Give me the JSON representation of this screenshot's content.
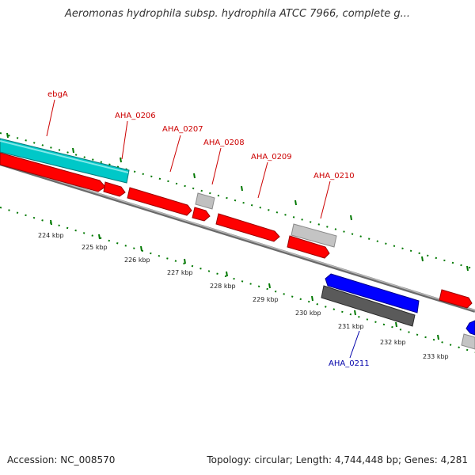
{
  "title": "Aeromonas hydrophila subsp. hydrophila ATCC 7966, complete g...",
  "footer": {
    "accession": "Accession: NC_008570",
    "summary": "Topology: circular; Length: 4,744,448 bp; Genes: 4,281"
  },
  "colors": {
    "cds_forward": "#ff0000",
    "cds_reverse": "#0000ff",
    "rna": "#00c8c8",
    "other": "#bebebe",
    "other_dark": "#505050",
    "backbone": "#808080",
    "tick": "#007800",
    "label_forward": "#cc0000",
    "label_reverse": "#0000aa"
  },
  "ticks": [
    {
      "label": "224 kbp"
    },
    {
      "label": "225 kbp"
    },
    {
      "label": "226 kbp"
    },
    {
      "label": "227 kbp"
    },
    {
      "label": "228 kbp"
    },
    {
      "label": "229 kbp"
    },
    {
      "label": "230 kbp"
    },
    {
      "label": "231 kbp"
    },
    {
      "label": "232 kbp"
    },
    {
      "label": "233 kbp"
    }
  ],
  "gene_labels": [
    {
      "text": "ebgA",
      "strand": "forward"
    },
    {
      "text": "AHA_0206",
      "strand": "forward"
    },
    {
      "text": "AHA_0207",
      "strand": "forward"
    },
    {
      "text": "AHA_0208",
      "strand": "forward"
    },
    {
      "text": "AHA_0209",
      "strand": "forward"
    },
    {
      "text": "AHA_0210",
      "strand": "forward"
    },
    {
      "text": "AHA_0211",
      "strand": "reverse"
    }
  ]
}
